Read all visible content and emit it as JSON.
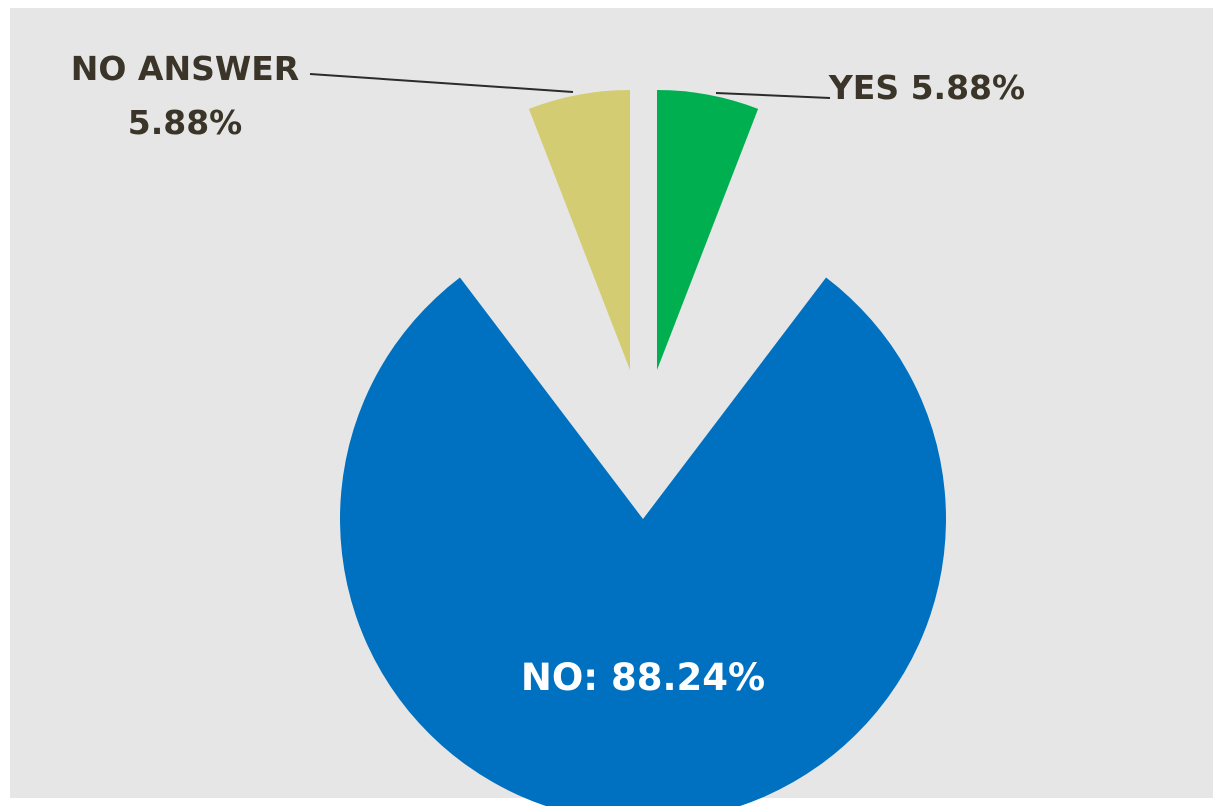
{
  "chart_data": {
    "type": "pie",
    "title": "",
    "slices": [
      {
        "name": "NO",
        "label": "NO: 88.24%",
        "value": 88.24,
        "color": "#0070c0",
        "label_color": "#ffffff"
      },
      {
        "name": "NO ANSWER",
        "label": "NO ANSWER 5.88%",
        "label_lines": [
          "NO ANSWER",
          "5.88%"
        ],
        "value": 5.88,
        "color": "#d4cc72",
        "label_color": "#3a3528"
      },
      {
        "name": "YES",
        "label": "YES 5.88%",
        "value": 5.88,
        "color": "#00b050",
        "label_color": "#3a3528"
      }
    ],
    "exploded": true,
    "start_angle_deg": 0,
    "direction": "clockwise-from-yes",
    "background_color": "#e6e6e6",
    "leader_line_color": "#2b2b2b",
    "legend": "none",
    "grid": false
  }
}
